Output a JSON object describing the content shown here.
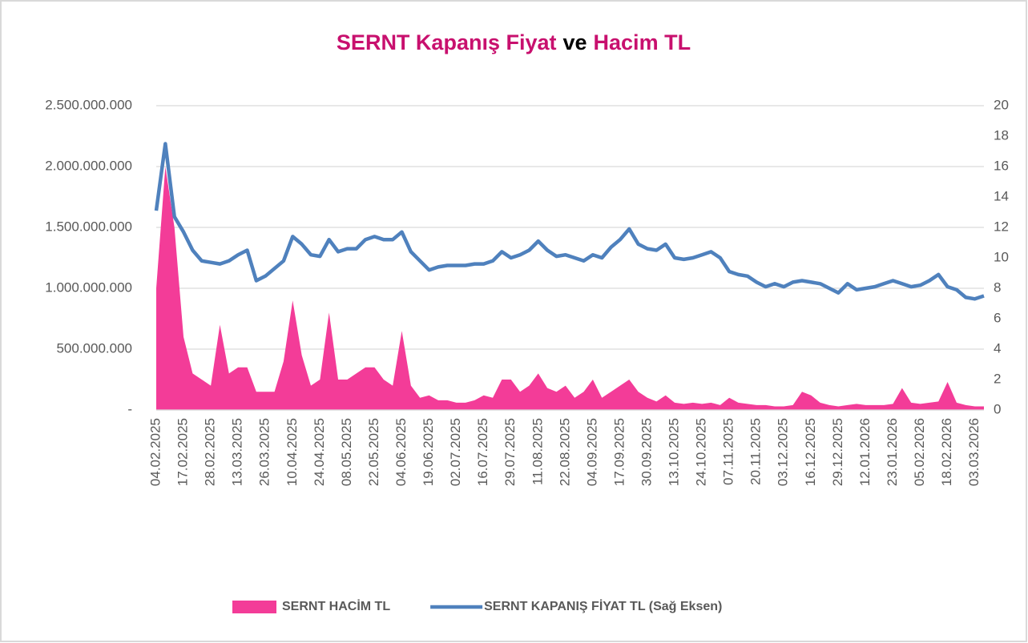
{
  "chart_data": {
    "type": "area_line",
    "title": [
      "SERNT Kapanış Fiyat",
      "ve",
      "Hacim TL"
    ],
    "title_colors": [
      "#c8106e",
      "#000000",
      "#c8106e"
    ],
    "legend": "bottom",
    "grid": true,
    "categories": [
      "04.02.2025",
      null,
      null,
      "17.02.2025",
      null,
      null,
      "28.02.2025",
      null,
      null,
      "13.03.2025",
      null,
      null,
      "26.03.2025",
      null,
      null,
      "10.04.2025",
      null,
      null,
      "24.04.2025",
      null,
      null,
      "08.05.2025",
      null,
      null,
      "22.05.2025",
      null,
      null,
      "04.06.2025",
      null,
      null,
      "19.06.2025",
      null,
      null,
      "02.07.2025",
      null,
      null,
      "16.07.2025",
      null,
      null,
      "29.07.2025",
      null,
      null,
      "11.08.2025",
      null,
      null,
      "22.08.2025",
      null,
      null,
      "04.09.2025",
      null,
      null,
      "17.09.2025",
      null,
      null,
      "30.09.2025",
      null,
      null,
      "13.10.2025",
      null,
      null,
      "24.10.2025",
      null,
      null,
      "07.11.2025",
      null,
      null,
      "20.11.2025",
      null,
      null,
      "03.12.2025",
      null,
      null,
      "16.12.2025",
      null,
      null,
      "29.12.2025",
      null,
      null,
      "12.01.2026",
      null,
      null,
      "23.01.2026",
      null,
      null,
      "05.02.2026",
      null,
      null,
      "18.02.2026",
      null,
      null,
      "03.03.2026",
      null
    ],
    "ylim": [
      0,
      2500000000
    ],
    "yticks": [
      {
        "value": 0,
        "label": "-"
      },
      {
        "value": 500000000,
        "label": "500.000.000"
      },
      {
        "value": 1000000000,
        "label": "1.000.000.000"
      },
      {
        "value": 1500000000,
        "label": "1.500.000.000"
      },
      {
        "value": 2000000000,
        "label": "2.000.000.000"
      },
      {
        "value": 2500000000,
        "label": "2.500.000.000"
      }
    ],
    "y2lim": [
      0,
      20
    ],
    "y2ticks": [
      0,
      2,
      4,
      6,
      8,
      10,
      12,
      14,
      16,
      18,
      20
    ],
    "series": [
      {
        "name": "SERNT HACİM TL",
        "color": "#f33c98",
        "kind": "area",
        "values": [
          1000000000,
          2000000000,
          1500000000,
          600000000,
          300000000,
          250000000,
          200000000,
          700000000,
          300000000,
          350000000,
          350000000,
          150000000,
          150000000,
          150000000,
          400000000,
          900000000,
          450000000,
          200000000,
          250000000,
          800000000,
          250000000,
          250000000,
          300000000,
          350000000,
          350000000,
          250000000,
          200000000,
          650000000,
          200000000,
          100000000,
          120000000,
          80000000,
          80000000,
          60000000,
          60000000,
          80000000,
          120000000,
          100000000,
          250000000,
          250000000,
          150000000,
          200000000,
          300000000,
          180000000,
          150000000,
          200000000,
          100000000,
          150000000,
          250000000,
          100000000,
          150000000,
          200000000,
          250000000,
          150000000,
          100000000,
          70000000,
          120000000,
          60000000,
          50000000,
          60000000,
          50000000,
          60000000,
          40000000,
          100000000,
          60000000,
          50000000,
          40000000,
          40000000,
          30000000,
          30000000,
          40000000,
          150000000,
          120000000,
          60000000,
          40000000,
          30000000,
          40000000,
          50000000,
          40000000,
          40000000,
          40000000,
          50000000,
          180000000,
          60000000,
          50000000,
          60000000,
          70000000,
          230000000,
          60000000,
          40000000,
          30000000,
          30000000
        ]
      },
      {
        "name": "SERNT KAPANIŞ FİYAT TL (Sağ Eksen)",
        "color": "#4f81bd",
        "kind": "line",
        "axis": "y2",
        "values": [
          13.1,
          17.5,
          12.7,
          11.7,
          10.5,
          9.8,
          9.7,
          9.6,
          9.8,
          10.2,
          10.5,
          8.5,
          8.8,
          9.3,
          9.8,
          11.4,
          10.9,
          10.2,
          10.1,
          11.2,
          10.4,
          10.6,
          10.6,
          11.2,
          11.4,
          11.2,
          11.2,
          11.7,
          10.4,
          9.8,
          9.2,
          9.4,
          9.5,
          9.5,
          9.5,
          9.6,
          9.6,
          9.8,
          10.4,
          10.0,
          10.2,
          10.5,
          11.1,
          10.5,
          10.1,
          10.2,
          10.0,
          9.8,
          10.2,
          10.0,
          10.7,
          11.2,
          11.9,
          10.9,
          10.6,
          10.5,
          10.9,
          10.0,
          9.9,
          10.0,
          10.2,
          10.4,
          10.0,
          9.1,
          8.9,
          8.8,
          8.4,
          8.1,
          8.3,
          8.1,
          8.4,
          8.5,
          8.4,
          8.3,
          8.0,
          7.7,
          8.3,
          7.9,
          8.0,
          8.1,
          8.3,
          8.5,
          8.3,
          8.1,
          8.2,
          8.5,
          8.9,
          8.1,
          7.9,
          7.4,
          7.3,
          7.5
        ]
      }
    ]
  }
}
